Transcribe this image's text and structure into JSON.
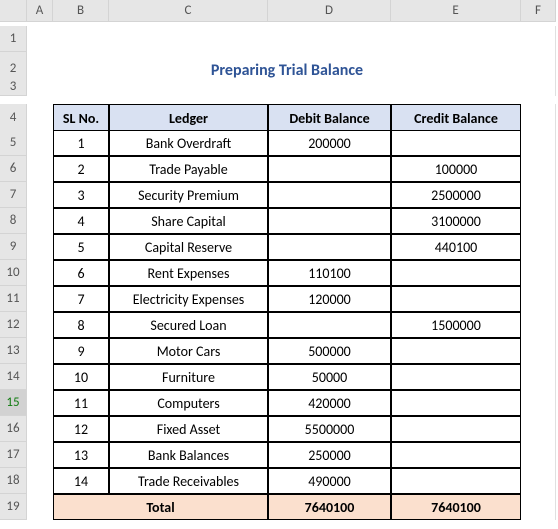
{
  "columns": [
    "A",
    "B",
    "C",
    "D",
    "E",
    "F"
  ],
  "row_numbers": [
    "1",
    "2",
    "3",
    "4",
    "5",
    "6",
    "7",
    "8",
    "9",
    "10",
    "11",
    "12",
    "13",
    "14",
    "15",
    "16",
    "17",
    "18",
    "19"
  ],
  "selected_row": 15,
  "title": "Preparing Trial Balance",
  "title_color": "#2f5496",
  "title_underline_color": "#5b9bd5",
  "headers": {
    "slno": "SL No.",
    "ledger": "Ledger",
    "debit": "Debit Balance",
    "credit": "Credit Balance"
  },
  "header_bg": "#d9e1f2",
  "rows": [
    {
      "slno": "1",
      "ledger": "Bank Overdraft",
      "debit": "200000",
      "credit": ""
    },
    {
      "slno": "2",
      "ledger": "Trade Payable",
      "debit": "",
      "credit": "100000"
    },
    {
      "slno": "3",
      "ledger": "Security Premium",
      "debit": "",
      "credit": "2500000"
    },
    {
      "slno": "4",
      "ledger": "Share Capital",
      "debit": "",
      "credit": "3100000"
    },
    {
      "slno": "5",
      "ledger": "Capital Reserve",
      "debit": "",
      "credit": "440100"
    },
    {
      "slno": "6",
      "ledger": "Rent Expenses",
      "debit": "110100",
      "credit": ""
    },
    {
      "slno": "7",
      "ledger": "Electricity Expenses",
      "debit": "120000",
      "credit": ""
    },
    {
      "slno": "8",
      "ledger": "Secured Loan",
      "debit": "",
      "credit": "1500000"
    },
    {
      "slno": "9",
      "ledger": "Motor Cars",
      "debit": "500000",
      "credit": ""
    },
    {
      "slno": "10",
      "ledger": "Furniture",
      "debit": "50000",
      "credit": ""
    },
    {
      "slno": "11",
      "ledger": "Computers",
      "debit": "420000",
      "credit": ""
    },
    {
      "slno": "12",
      "ledger": "Fixed Asset",
      "debit": "5500000",
      "credit": ""
    },
    {
      "slno": "13",
      "ledger": "Bank Balances",
      "debit": "250000",
      "credit": ""
    },
    {
      "slno": "14",
      "ledger": "Trade Receivables",
      "debit": "490000",
      "credit": ""
    }
  ],
  "total": {
    "label": "Total",
    "debit": "7640100",
    "credit": "7640100"
  },
  "total_bg": "#fbe0ce"
}
